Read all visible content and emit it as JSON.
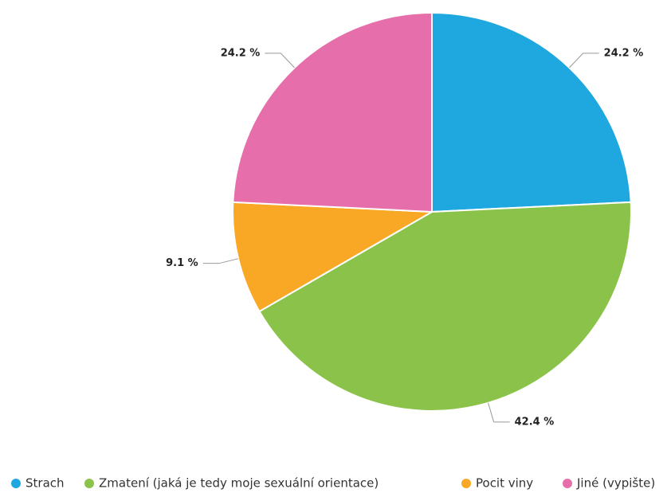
{
  "chart_data": {
    "type": "pie",
    "categories": [
      "Strach",
      "Zmatení (jaká je tedy moje sexuální orientace)",
      "Pocit viny",
      "Jiné (vypište)"
    ],
    "values": [
      24.2,
      42.4,
      9.1,
      24.2
    ],
    "value_labels": [
      "24.2 %",
      "42.4 %",
      "9.1 %",
      "24.2 %"
    ],
    "colors": [
      "#1fa8df",
      "#8bc34a",
      "#f9a825",
      "#e66fab"
    ],
    "legend": "bottom"
  }
}
